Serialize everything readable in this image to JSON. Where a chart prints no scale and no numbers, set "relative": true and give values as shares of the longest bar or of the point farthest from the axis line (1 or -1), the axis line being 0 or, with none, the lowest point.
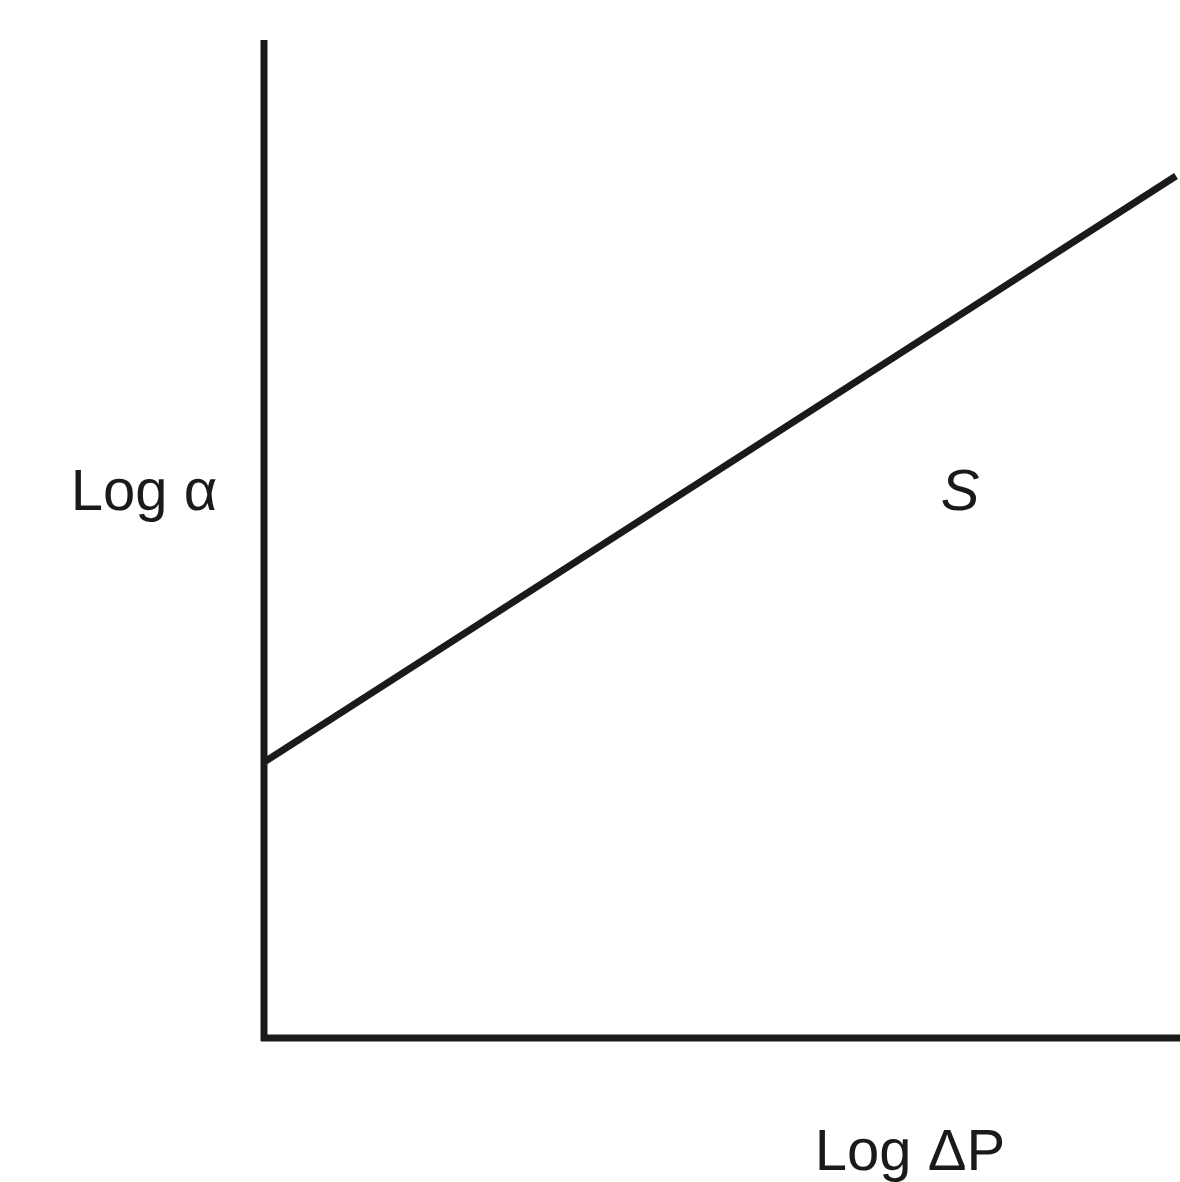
{
  "chart_data": {
    "type": "line",
    "relative": true,
    "xlabel": "Log ΔP",
    "ylabel": "Log α",
    "annotations": [
      "S"
    ],
    "categories": [
      null,
      null
    ],
    "series": [
      {
        "color": "#1a1a1a",
        "values": [
          0.32,
          1
        ]
      }
    ],
    "ref_lines": [
      {
        "axis": "y",
        "value": 0,
        "color": "#1a1a1a"
      }
    ],
    "marker": "none",
    "line_style": "solid"
  }
}
